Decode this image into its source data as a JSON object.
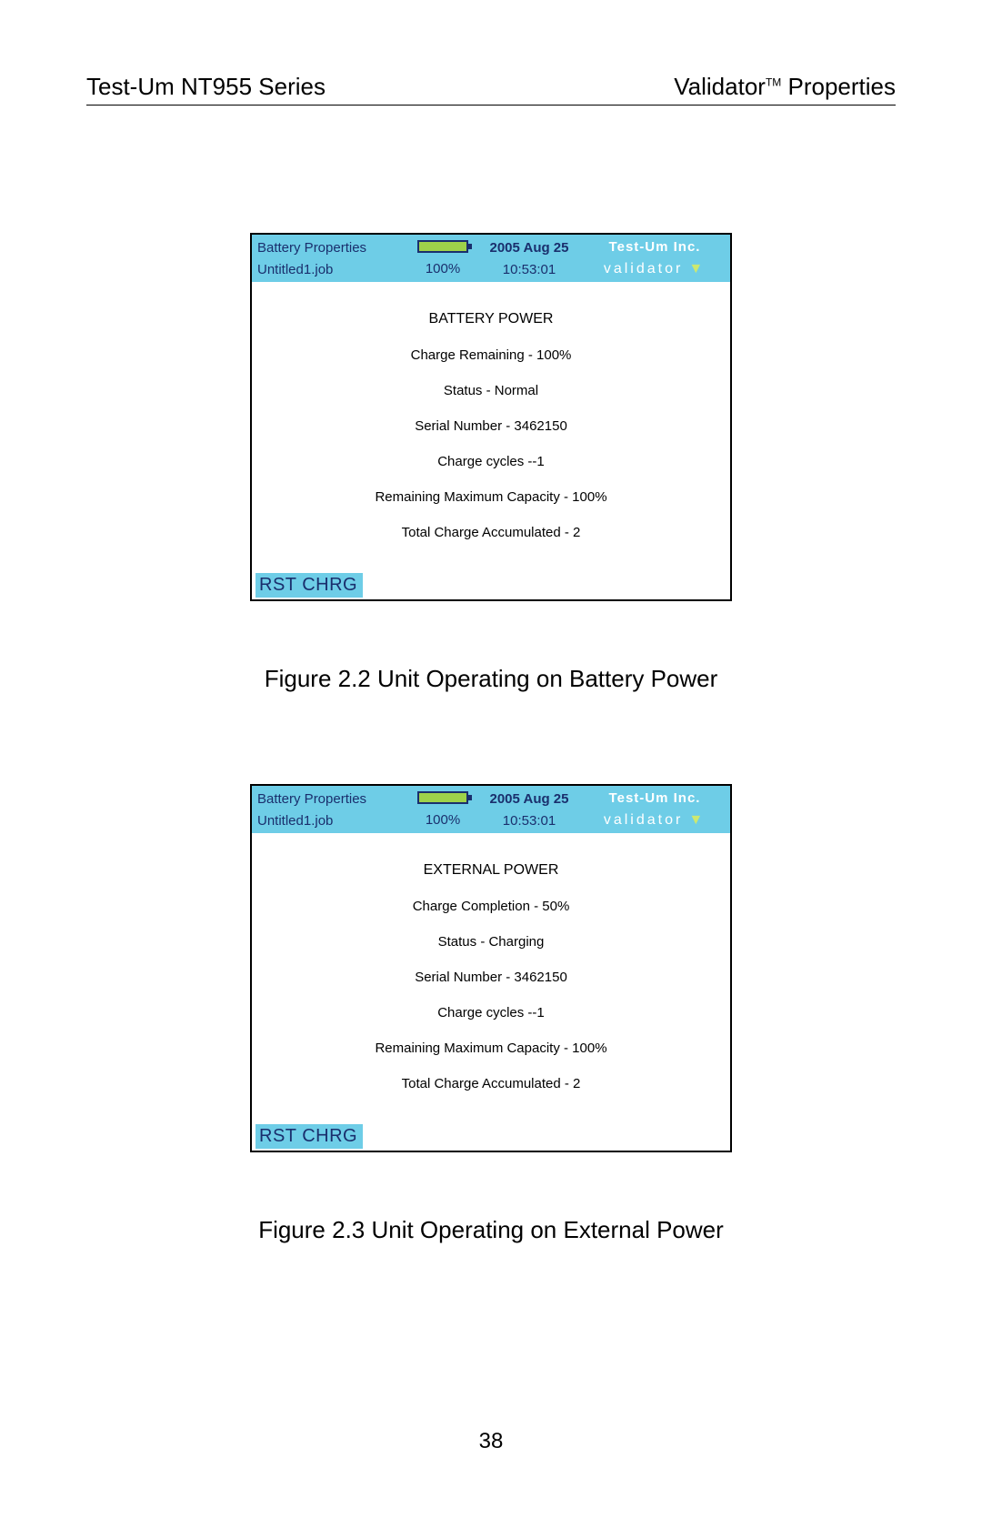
{
  "header": {
    "left": "Test-Um NT955 Series",
    "right_prefix": "Validator",
    "right_tm": "TM",
    "right_suffix": " Properties"
  },
  "colors": {
    "header_bg": "#6ecde7",
    "header_text": "#1a2f6d",
    "brand_text": "#ffffff",
    "triangle": "#cde86f",
    "battery_fill": "#9ed24a",
    "page_bg": "#ffffff"
  },
  "screen1": {
    "top": {
      "bp": "Battery Properties",
      "job": "Untitled1.job",
      "pct": "100%",
      "date": "2005 Aug 25",
      "time": "10:53:01",
      "brand_top": "Test-Um Inc.",
      "brand_bot": "validator",
      "triangle": "▼"
    },
    "title": "BATTERY POWER",
    "lines": [
      "Charge Remaining - 100%",
      "Status - Normal",
      "Serial Number - 3462150",
      "Charge cycles --1",
      "Remaining Maximum Capacity - 100%",
      "Total Charge Accumulated - 2"
    ],
    "rst": "RST CHRG"
  },
  "caption1": "Figure 2.2 Unit Operating on Battery Power",
  "screen2": {
    "top": {
      "bp": "Battery Properties",
      "job": "Untitled1.job",
      "pct": "100%",
      "date": "2005 Aug 25",
      "time": "10:53:01",
      "brand_top": "Test-Um Inc.",
      "brand_bot": "validator",
      "triangle": "▼"
    },
    "title": "EXTERNAL POWER",
    "lines": [
      "Charge Completion - 50%",
      "Status - Charging",
      "Serial Number - 3462150",
      "Charge cycles --1",
      "Remaining Maximum Capacity - 100%",
      "Total Charge Accumulated - 2"
    ],
    "rst": "RST CHRG"
  },
  "caption2": "Figure 2.3 Unit Operating on External Power",
  "page_number": "38"
}
